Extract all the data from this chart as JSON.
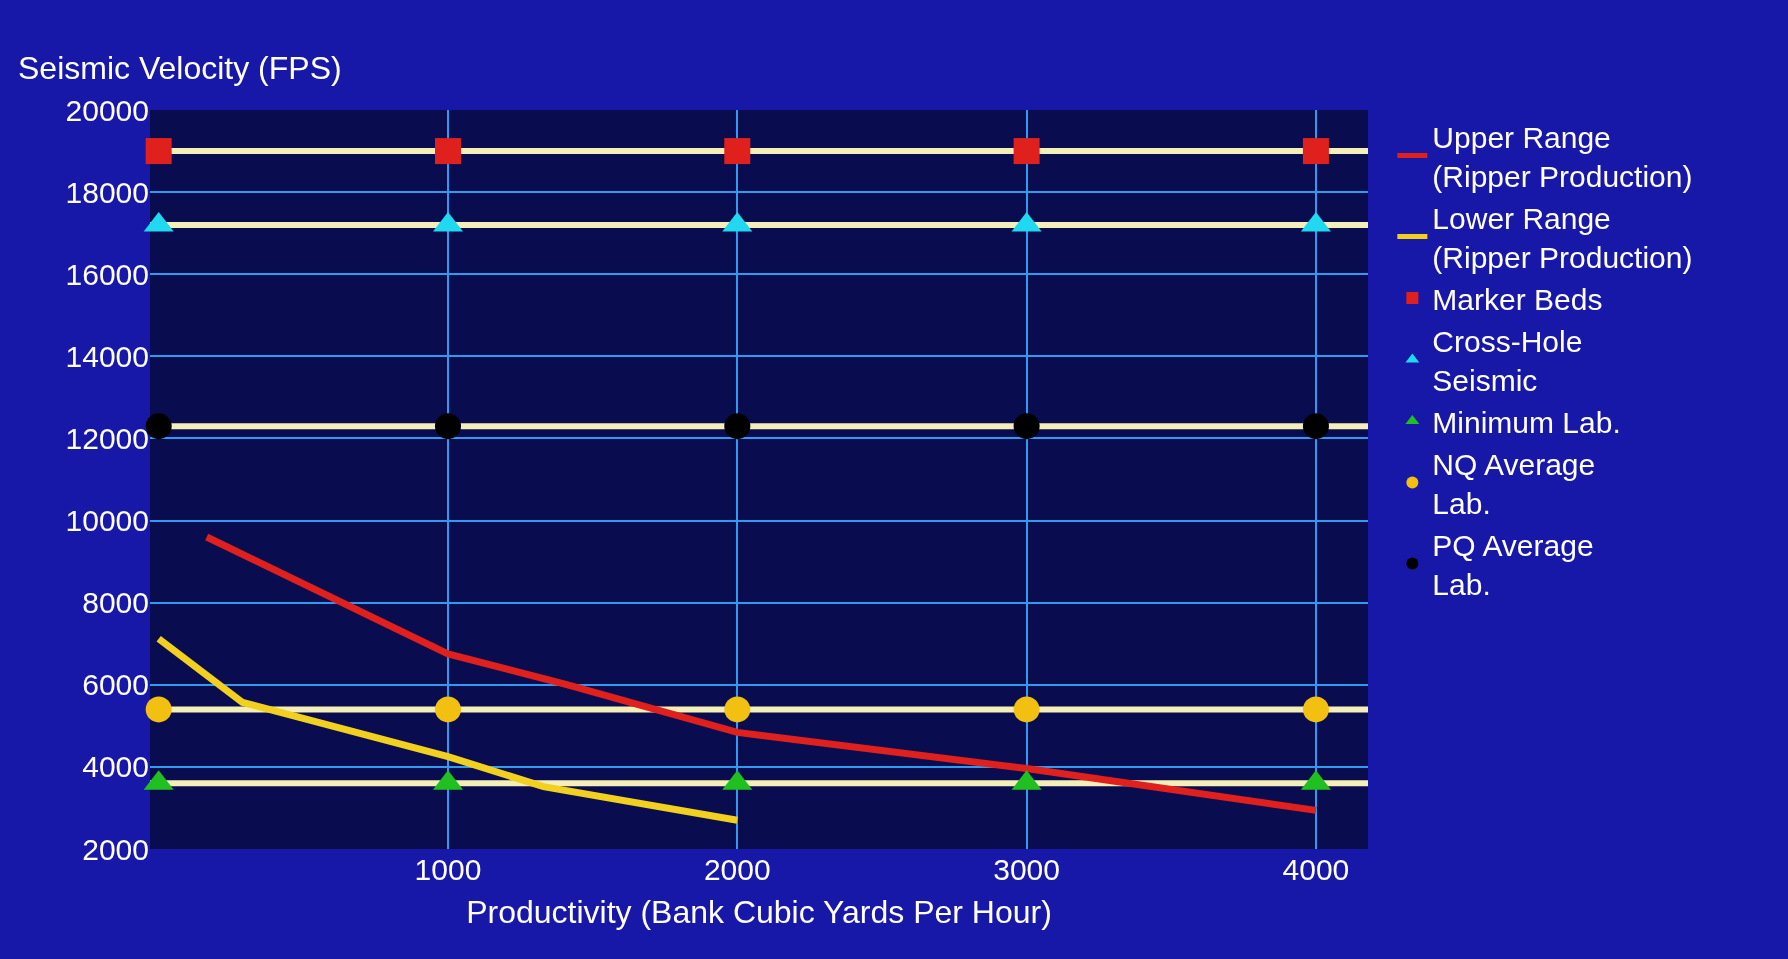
{
  "chart_data": {
    "type": "scatter",
    "ylabel": "Seismic Velocity (FPS)",
    "xlabel": "Productivity (Bank Cubic Yards Per Hour)",
    "xlim": [
      -30,
      4180
    ],
    "xticks": [
      1000,
      2000,
      3000,
      4000
    ],
    "ylim": [
      2000,
      20000
    ],
    "yticks": [
      2000,
      4000,
      6000,
      8000,
      10000,
      12000,
      14000,
      16000,
      18000,
      20000
    ],
    "grid": true,
    "legend": "right",
    "series": [
      {
        "name": "Upper Range\n(Ripper Production)",
        "type": "line",
        "marker": "none",
        "color": "#e0201c",
        "x": [
          166,
          1000,
          1414,
          2000,
          3000,
          4000
        ],
        "values": [
          9600,
          6750,
          6000,
          4840,
          3960,
          2940
        ]
      },
      {
        "name": "Lower Range\n(Ripper Production)",
        "type": "line",
        "marker": "none",
        "color": "#f2d020",
        "x": [
          0,
          290,
          1000,
          1330,
          2000
        ],
        "values": [
          7120,
          5570,
          4250,
          3520,
          2700
        ]
      },
      {
        "name": "Marker Beds",
        "marker": "square",
        "color": "#e0201c",
        "x": [
          0,
          1000,
          2000,
          3000,
          4000
        ],
        "values": [
          19000,
          19000,
          19000,
          19000,
          19000
        ]
      },
      {
        "name": "Cross-Hole\nSeismic",
        "marker": "triangle",
        "color": "#20d8f0",
        "x": [
          0,
          1000,
          2000,
          3000,
          4000
        ],
        "values": [
          17200,
          17200,
          17200,
          17200,
          17200
        ]
      },
      {
        "name": "Minimum Lab.",
        "marker": "triangle",
        "color": "#20c020",
        "x": [
          0,
          1000,
          2000,
          3000,
          4000
        ],
        "values": [
          3600,
          3600,
          3600,
          3600,
          3600
        ]
      },
      {
        "name": "NQ Average\nLab.",
        "marker": "circle",
        "color": "#f2c010",
        "x": [
          0,
          1000,
          2000,
          3000,
          4000
        ],
        "values": [
          5400,
          5400,
          5400,
          5400,
          5400
        ]
      },
      {
        "name": "PQ Average\nLab.",
        "marker": "circle",
        "color": "#000000",
        "x": [
          0,
          1000,
          2000,
          3000,
          4000
        ],
        "values": [
          12300,
          12300,
          12300,
          12300,
          12300
        ]
      }
    ],
    "ref_lines": [
      {
        "axis": "y",
        "value": 19000,
        "color": "#f4efb8"
      },
      {
        "axis": "y",
        "value": 17200,
        "color": "#f4efb8"
      },
      {
        "axis": "y",
        "value": 12300,
        "color": "#f4efb8"
      },
      {
        "axis": "y",
        "value": 5400,
        "color": "#f4efb8"
      },
      {
        "axis": "y",
        "value": 3600,
        "color": "#f4efb8"
      }
    ]
  }
}
